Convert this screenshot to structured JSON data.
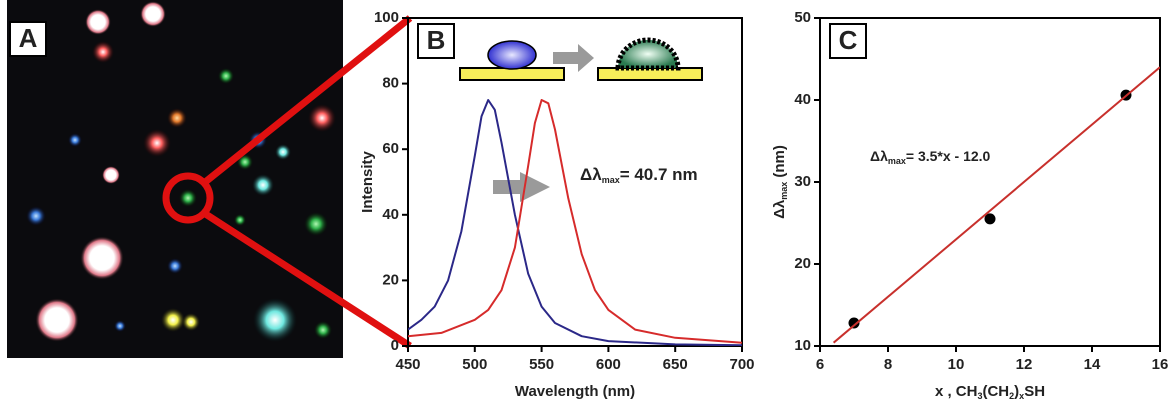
{
  "image_panel": {
    "label": "A"
  },
  "chart_data": [
    {
      "type": "line",
      "panel_label": "B",
      "xlabel": [
        "Wavelength (nm)"
      ],
      "ylabel": [
        "Intensity"
      ],
      "annotation": [
        "Δλ",
        "max",
        "= 40.7 nm"
      ],
      "xlim": [
        450,
        700
      ],
      "xticks": [
        450,
        500,
        550,
        600,
        650,
        700
      ],
      "ylim": [
        0,
        100
      ],
      "yticks": [
        0,
        20,
        40,
        60,
        80,
        100
      ],
      "series": [
        {
          "color": "#2b2888",
          "x": [
            450,
            460,
            470,
            480,
            490,
            500,
            505,
            510,
            515,
            520,
            530,
            540,
            550,
            560,
            580,
            600,
            650,
            700
          ],
          "values": [
            5,
            8,
            12,
            20,
            35,
            58,
            70,
            75,
            72,
            62,
            40,
            22,
            12,
            7,
            3,
            1.5,
            0.5,
            0.2
          ]
        },
        {
          "color": "#d62b2b",
          "x": [
            450,
            475,
            500,
            510,
            520,
            530,
            540,
            545,
            550,
            555,
            560,
            570,
            580,
            590,
            600,
            620,
            650,
            700
          ],
          "values": [
            3,
            4,
            8,
            11,
            17,
            30,
            55,
            68,
            75,
            74,
            66,
            45,
            28,
            17,
            11,
            5,
            2.5,
            1
          ]
        }
      ]
    },
    {
      "type": "scatter",
      "panel_label": "C",
      "xlabel": [
        "x , CH",
        "3",
        "(CH",
        "2",
        ")",
        "x",
        "SH"
      ],
      "ylabel": [
        "Δλ",
        "max",
        " (nm)"
      ],
      "annotation": [
        "Δλ",
        "max",
        "= 3.5*x - 12.0"
      ],
      "xlim": [
        6,
        16
      ],
      "xticks": [
        6,
        8,
        10,
        12,
        14,
        16
      ],
      "ylim": [
        10,
        50
      ],
      "yticks": [
        10,
        20,
        30,
        40,
        50
      ],
      "series": [
        {
          "style": "markers",
          "color": "#000000",
          "x": [
            7,
            11,
            15
          ],
          "values": [
            12.8,
            25.5,
            40.6
          ]
        },
        {
          "style": "line",
          "color": "#c8302c",
          "x": [
            6.4,
            16
          ],
          "values": [
            10.4,
            44
          ]
        }
      ]
    }
  ]
}
